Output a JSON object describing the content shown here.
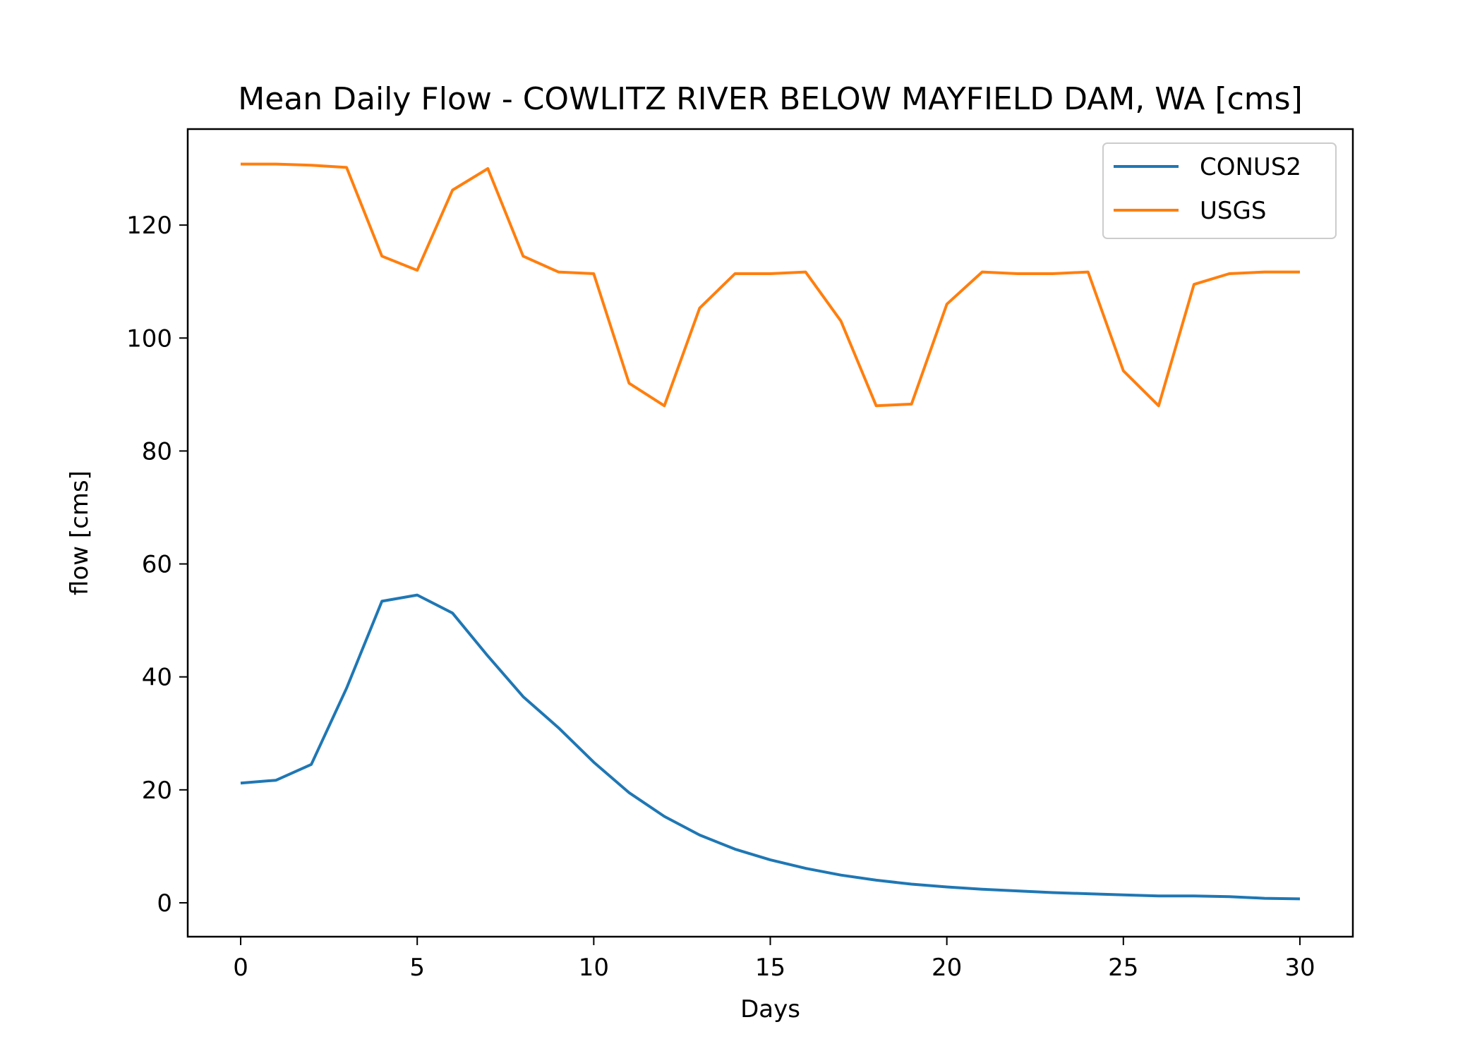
{
  "chart_data": {
    "type": "line",
    "title": "Mean Daily Flow - COWLITZ RIVER BELOW MAYFIELD DAM, WA [cms]",
    "xlabel": "Days",
    "ylabel": "flow [cms]",
    "xlim": [
      -1.5,
      31.5
    ],
    "ylim": [
      -6,
      137
    ],
    "xticks": [
      0,
      5,
      10,
      15,
      20,
      25,
      30
    ],
    "yticks": [
      0,
      20,
      40,
      60,
      80,
      100,
      120
    ],
    "grid": false,
    "legend_position": "top-right",
    "x": [
      0,
      1,
      2,
      3,
      4,
      5,
      6,
      7,
      8,
      9,
      10,
      11,
      12,
      13,
      14,
      15,
      16,
      17,
      18,
      19,
      20,
      21,
      22,
      23,
      24,
      25,
      26,
      27,
      28,
      29,
      30
    ],
    "series": [
      {
        "name": "CONUS2",
        "color": "#1f77b4",
        "values": [
          21.2,
          21.7,
          24.5,
          38,
          53.4,
          54.5,
          51.3,
          43.7,
          36.5,
          31,
          24.9,
          19.5,
          15.3,
          12,
          9.5,
          7.6,
          6.1,
          4.9,
          4,
          3.3,
          2.8,
          2.4,
          2.1,
          1.8,
          1.6,
          1.4,
          1.2,
          1.2,
          1.1,
          0.8,
          0.7
        ]
      },
      {
        "name": "USGS",
        "color": "#ff7f0e",
        "values": [
          130.8,
          130.8,
          130.6,
          130.2,
          114.5,
          112,
          126.2,
          130,
          114.5,
          111.7,
          111.4,
          92,
          88,
          105.3,
          111.4,
          111.4,
          111.7,
          103,
          88,
          88.3,
          106,
          111.7,
          111.4,
          111.4,
          111.7,
          94.2,
          88,
          109.5,
          111.4,
          111.7,
          111.7
        ]
      }
    ]
  }
}
